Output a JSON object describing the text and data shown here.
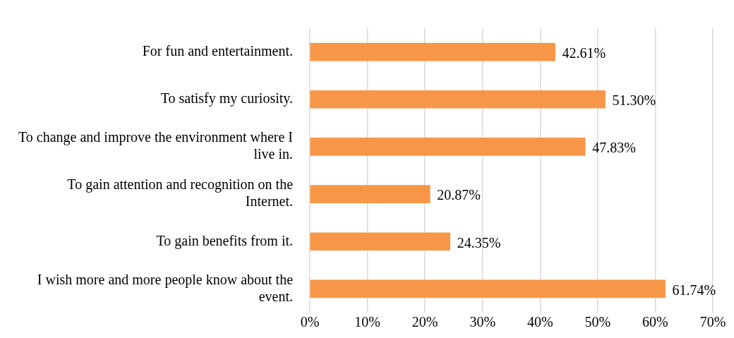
{
  "chart_data": {
    "type": "bar",
    "orientation": "horizontal",
    "categories": [
      "For fun and entertainment.",
      "To satisfy my curiosity.",
      "To change and improve the environment where I live in.",
      "To gain attention and recognition on the Internet.",
      "To gain benefits from it.",
      "I wish more and more people know about the event."
    ],
    "values": [
      42.61,
      51.3,
      47.83,
      20.87,
      24.35,
      61.74
    ],
    "value_labels": [
      "42.61%",
      "51.30%",
      "47.83%",
      "20.87%",
      "24.35%",
      "61.74%"
    ],
    "color": "#f79646",
    "xlim": [
      0,
      70
    ],
    "xticks": [
      {
        "value": 0,
        "label": "0%"
      },
      {
        "value": 10,
        "label": "10%"
      },
      {
        "value": 20,
        "label": "20%"
      },
      {
        "value": 30,
        "label": "30%"
      },
      {
        "value": 40,
        "label": "40%"
      },
      {
        "value": 50,
        "label": "50%"
      },
      {
        "value": 60,
        "label": "60%"
      },
      {
        "value": 70,
        "label": "70%"
      }
    ],
    "grid": "x",
    "legend": false
  }
}
